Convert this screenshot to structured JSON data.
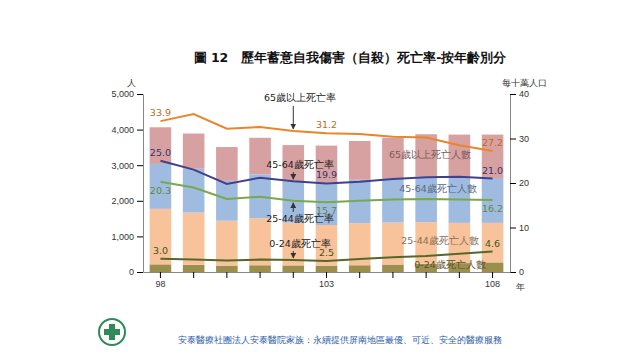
{
  "chart_data": {
    "type": "bar",
    "title": "圖 12　歷年蓄意自我傷害（自殺）死亡率-按年齡別分",
    "stacked": true,
    "x_label": "年",
    "y_label": "人",
    "y2_label": "每十萬人口",
    "categories": [
      "98",
      null,
      null,
      null,
      null,
      "103",
      null,
      null,
      null,
      null,
      "108"
    ],
    "ylim": [
      0,
      5000
    ],
    "yticks": [
      0,
      {
        "value": 1000,
        "label": "1,000"
      },
      {
        "value": 2000,
        "label": "2,000"
      },
      {
        "value": 3000,
        "label": "3,000"
      },
      {
        "value": 4000,
        "label": "4,000"
      },
      {
        "value": 5000,
        "label": "5,000"
      }
    ],
    "y2lim": [
      0,
      40
    ],
    "y2ticks": [
      0,
      10,
      20,
      30,
      40
    ],
    "series": [
      {
        "name": "0-24歲死亡人數",
        "type": "bar",
        "color": "#9c8f4e",
        "values": [
          215,
          200,
          180,
          190,
          185,
          170,
          190,
          210,
          230,
          250,
          270
        ]
      },
      {
        "name": "25-44歲死亡人數",
        "type": "bar",
        "color": "#f8c39b",
        "values": [
          1560,
          1470,
          1260,
          1320,
          1200,
          1150,
          1180,
          1180,
          1170,
          1130,
          1110
        ]
      },
      {
        "name": "45-64歲死亡人數",
        "type": "bar",
        "color": "#9fbbe0",
        "values": [
          1260,
          1230,
          1120,
          1230,
          1160,
          1190,
          1220,
          1250,
          1280,
          1260,
          1260
        ]
      },
      {
        "name": "65歲以上死亡人數",
        "type": "bar",
        "color": "#d8a1a1",
        "values": [
          1030,
          990,
          950,
          1030,
          1020,
          1040,
          1090,
          1130,
          1190,
          1220,
          1220
        ]
      },
      {
        "name": "65歲以上死亡率",
        "type": "line",
        "axis": "y2",
        "color": "#e8862a",
        "data_labels": true,
        "values": [
          33.9,
          35.5,
          32.2,
          32.6,
          31.7,
          31.2,
          31.0,
          30.4,
          30.2,
          28.5,
          27.2
        ],
        "value_labels": [
          "33.9",
          null,
          null,
          null,
          null,
          "31.2",
          null,
          null,
          null,
          null,
          "27.2"
        ]
      },
      {
        "name": "45-64歲死亡率",
        "type": "line",
        "axis": "y2",
        "color": "#3d418f",
        "data_labels": true,
        "values": [
          25.0,
          23.0,
          19.8,
          21.2,
          20.4,
          19.9,
          20.3,
          20.9,
          21.3,
          21.4,
          21.0
        ],
        "value_labels": [
          "25.0",
          null,
          null,
          null,
          null,
          "19.9",
          null,
          null,
          null,
          null,
          "21.0"
        ]
      },
      {
        "name": "25-44歲死亡率",
        "type": "line",
        "axis": "y2",
        "color": "#7aa84a",
        "data_labels": true,
        "values": [
          20.3,
          19.0,
          16.4,
          16.9,
          16.0,
          15.7,
          16.0,
          16.3,
          16.4,
          16.3,
          16.2
        ],
        "value_labels": [
          "20.3",
          null,
          null,
          null,
          null,
          "15.7",
          null,
          null,
          null,
          null,
          "16.2"
        ]
      },
      {
        "name": "0-24歲死亡率",
        "type": "line",
        "axis": "y2",
        "color": "#55682a",
        "data_labels": true,
        "values": [
          3.0,
          2.8,
          2.6,
          2.8,
          2.7,
          2.5,
          2.9,
          3.3,
          3.6,
          4.1,
          4.6
        ],
        "value_labels": [
          "3.0",
          null,
          null,
          null,
          null,
          "2.5",
          null,
          null,
          null,
          null,
          "4.6"
        ]
      }
    ]
  },
  "footer": "安泰醫療社團法人安泰醫院家族：永續提供屏南地區最優、可近、安全的醫療服務"
}
